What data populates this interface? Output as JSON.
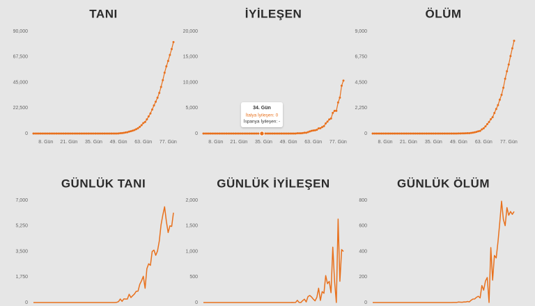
{
  "chart_data": [
    {
      "type": "line",
      "title": "TANI",
      "color": "#e8701c",
      "markers": true,
      "x": [
        1,
        2,
        3,
        4,
        5,
        6,
        7,
        8,
        9,
        10,
        11,
        12,
        13,
        14,
        15,
        16,
        17,
        18,
        19,
        20,
        21,
        22,
        23,
        24,
        25,
        26,
        27,
        28,
        29,
        30,
        31,
        32,
        33,
        34,
        35,
        36,
        37,
        38,
        39,
        40,
        41,
        42,
        43,
        44,
        45,
        46,
        47,
        48,
        49,
        50,
        51,
        52,
        53,
        54,
        55,
        56,
        57,
        58,
        59,
        60,
        61,
        62,
        63,
        64,
        65,
        66,
        67,
        68,
        69,
        70,
        71,
        72,
        73,
        74,
        75,
        76,
        77,
        78,
        79,
        80
      ],
      "values": [
        0,
        0,
        0,
        0,
        0,
        0,
        0,
        0,
        0,
        0,
        0,
        0,
        0,
        0,
        0,
        0,
        0,
        0,
        0,
        0,
        0,
        0,
        0,
        0,
        0,
        0,
        0,
        0,
        0,
        0,
        3,
        3,
        3,
        3,
        3,
        3,
        3,
        3,
        3,
        3,
        3,
        3,
        3,
        3,
        3,
        3,
        3,
        17,
        79,
        322,
        400,
        650,
        888,
        1128,
        1694,
        2036,
        2502,
        3089,
        3858,
        4636,
        5883,
        7375,
        9172,
        10149,
        12462,
        15113,
        17660,
        21157,
        24747,
        27980,
        31506,
        35713,
        41035,
        47021,
        53578,
        59138,
        63927,
        69176,
        74386,
        80539
      ],
      "xlim": [
        1,
        80
      ],
      "xticks": [
        {
          "value": 8,
          "label": "8. Gün"
        },
        {
          "value": 21,
          "label": "21. Gün"
        },
        {
          "value": 35,
          "label": "35. Gün"
        },
        {
          "value": 49,
          "label": "49. Gün"
        },
        {
          "value": 63,
          "label": "63. Gün"
        },
        {
          "value": 77,
          "label": "77. Gün"
        }
      ],
      "ylim": [
        0,
        90000
      ],
      "yticks": [
        0,
        {
          "value": 22500,
          "label": "22,500"
        },
        {
          "value": 45000,
          "label": "45,000"
        },
        {
          "value": 67500,
          "label": "67,500"
        },
        {
          "value": 90000,
          "label": "90,000"
        }
      ]
    },
    {
      "type": "line",
      "title": "İYİLEŞEN",
      "color": "#e8701c",
      "markers": true,
      "x": [
        1,
        2,
        3,
        4,
        5,
        6,
        7,
        8,
        9,
        10,
        11,
        12,
        13,
        14,
        15,
        16,
        17,
        18,
        19,
        20,
        21,
        22,
        23,
        24,
        25,
        26,
        27,
        28,
        29,
        30,
        31,
        32,
        33,
        34,
        35,
        36,
        37,
        38,
        39,
        40,
        41,
        42,
        43,
        44,
        45,
        46,
        47,
        48,
        49,
        50,
        51,
        52,
        53,
        54,
        55,
        56,
        57,
        58,
        59,
        60,
        61,
        62,
        63,
        64,
        65,
        66,
        67,
        68,
        69,
        70,
        71,
        72,
        73,
        74,
        75,
        76,
        77,
        78,
        79,
        80
      ],
      "values": [
        0,
        0,
        0,
        0,
        0,
        0,
        0,
        0,
        0,
        0,
        0,
        0,
        0,
        0,
        0,
        0,
        0,
        0,
        0,
        0,
        0,
        0,
        0,
        0,
        0,
        0,
        0,
        0,
        0,
        0,
        0,
        0,
        0,
        0,
        0,
        0,
        0,
        0,
        0,
        0,
        0,
        0,
        0,
        0,
        0,
        0,
        0,
        0,
        0,
        0,
        1,
        1,
        2,
        45,
        46,
        46,
        83,
        149,
        160,
        276,
        414,
        523,
        589,
        622,
        724,
        1004,
        1045,
        1258,
        1439,
        1966,
        2335,
        2749,
        2941,
        4025,
        4440,
        4440,
        6072,
        7024,
        9362,
        10361
      ],
      "xlim": [
        1,
        80
      ],
      "xticks": [
        {
          "value": 8,
          "label": "8. Gün"
        },
        {
          "value": 21,
          "label": "21. Gün"
        },
        {
          "value": 35,
          "label": "35. Gün"
        },
        {
          "value": 49,
          "label": "49. Gün"
        },
        {
          "value": 63,
          "label": "63. Gün"
        },
        {
          "value": 77,
          "label": "77. Gün"
        }
      ],
      "ylim": [
        0,
        20000
      ],
      "yticks": [
        0,
        {
          "value": 5000,
          "label": "5,000"
        },
        {
          "value": 10000,
          "label": "10,000"
        },
        {
          "value": 15000,
          "label": "15,000"
        },
        {
          "value": 20000,
          "label": "20,000"
        }
      ],
      "tooltip": {
        "title": "34. Gün",
        "lines": [
          "İtalya İyileşen: 0",
          "İspanya İyileşen: -"
        ]
      }
    },
    {
      "type": "line",
      "title": "ÖLÜM",
      "color": "#e8701c",
      "markers": true,
      "x": [
        1,
        2,
        3,
        4,
        5,
        6,
        7,
        8,
        9,
        10,
        11,
        12,
        13,
        14,
        15,
        16,
        17,
        18,
        19,
        20,
        21,
        22,
        23,
        24,
        25,
        26,
        27,
        28,
        29,
        30,
        31,
        32,
        33,
        34,
        35,
        36,
        37,
        38,
        39,
        40,
        41,
        42,
        43,
        44,
        45,
        46,
        47,
        48,
        49,
        50,
        51,
        52,
        53,
        54,
        55,
        56,
        57,
        58,
        59,
        60,
        61,
        62,
        63,
        64,
        65,
        66,
        67,
        68,
        69,
        70,
        71,
        72,
        73,
        74,
        75,
        76,
        77,
        78,
        79,
        80
      ],
      "values": [
        0,
        0,
        0,
        0,
        0,
        0,
        0,
        0,
        0,
        0,
        0,
        0,
        0,
        0,
        0,
        0,
        0,
        0,
        0,
        0,
        0,
        0,
        0,
        0,
        0,
        0,
        0,
        0,
        0,
        0,
        0,
        0,
        0,
        0,
        0,
        0,
        0,
        0,
        0,
        0,
        0,
        0,
        0,
        0,
        0,
        1,
        2,
        3,
        7,
        10,
        12,
        17,
        21,
        29,
        34,
        52,
        79,
        107,
        148,
        197,
        233,
        366,
        463,
        631,
        827,
        1016,
        1266,
        1441,
        1809,
        2158,
        2503,
        2978,
        3405,
        4032,
        4825,
        5476,
        6077,
        6820,
        7503,
        8165
      ],
      "xlim": [
        1,
        80
      ],
      "xticks": [
        {
          "value": 8,
          "label": "8. Gün"
        },
        {
          "value": 21,
          "label": "21. Gün"
        },
        {
          "value": 35,
          "label": "35. Gün"
        },
        {
          "value": 49,
          "label": "49. Gün"
        },
        {
          "value": 63,
          "label": "63. Gün"
        },
        {
          "value": 77,
          "label": "77. Gün"
        }
      ],
      "ylim": [
        0,
        9000
      ],
      "yticks": [
        0,
        {
          "value": 2250,
          "label": "2,250"
        },
        {
          "value": 4500,
          "label": "4,500"
        },
        {
          "value": 6750,
          "label": "6,750"
        },
        {
          "value": 9000,
          "label": "9,000"
        }
      ]
    },
    {
      "type": "line",
      "title": "GÜNLÜK TANI",
      "color": "#e8701c",
      "markers": false,
      "x": [
        1,
        2,
        3,
        4,
        5,
        6,
        7,
        8,
        9,
        10,
        11,
        12,
        13,
        14,
        15,
        16,
        17,
        18,
        19,
        20,
        21,
        22,
        23,
        24,
        25,
        26,
        27,
        28,
        29,
        30,
        31,
        32,
        33,
        34,
        35,
        36,
        37,
        38,
        39,
        40,
        41,
        42,
        43,
        44,
        45,
        46,
        47,
        48,
        49,
        50,
        51,
        52,
        53,
        54,
        55,
        56,
        57,
        58,
        59,
        60,
        61,
        62,
        63,
        64,
        65,
        66,
        67,
        68,
        69,
        70,
        71,
        72,
        73,
        74,
        75,
        76,
        77,
        78,
        79,
        80
      ],
      "values": [
        0,
        0,
        0,
        0,
        0,
        0,
        0,
        0,
        0,
        0,
        0,
        0,
        0,
        0,
        0,
        0,
        0,
        0,
        0,
        0,
        0,
        0,
        0,
        0,
        0,
        0,
        0,
        0,
        0,
        0,
        3,
        0,
        0,
        0,
        0,
        0,
        0,
        0,
        0,
        0,
        0,
        0,
        0,
        0,
        0,
        0,
        0,
        14,
        62,
        243,
        78,
        250,
        238,
        240,
        566,
        342,
        466,
        587,
        769,
        778,
        1247,
        1492,
        1797,
        977,
        2313,
        2651,
        2547,
        3497,
        3590,
        3233,
        3526,
        4207,
        5322,
        5986,
        6557,
        5560,
        4789,
        5249,
        5210,
        6153
      ],
      "xlim": [
        1,
        80
      ],
      "ylim": [
        0,
        7000
      ],
      "yticks": [
        0,
        {
          "value": 1750,
          "label": "1,750"
        },
        {
          "value": 3500,
          "label": "3,500"
        },
        {
          "value": 5250,
          "label": "5,250"
        },
        {
          "value": 7000,
          "label": "7,000"
        }
      ]
    },
    {
      "type": "line",
      "title": "GÜNLÜK İYİLEŞEN",
      "color": "#e8701c",
      "markers": false,
      "x": [
        1,
        2,
        3,
        4,
        5,
        6,
        7,
        8,
        9,
        10,
        11,
        12,
        13,
        14,
        15,
        16,
        17,
        18,
        19,
        20,
        21,
        22,
        23,
        24,
        25,
        26,
        27,
        28,
        29,
        30,
        31,
        32,
        33,
        34,
        35,
        36,
        37,
        38,
        39,
        40,
        41,
        42,
        43,
        44,
        45,
        46,
        47,
        48,
        49,
        50,
        51,
        52,
        53,
        54,
        55,
        56,
        57,
        58,
        59,
        60,
        61,
        62,
        63,
        64,
        65,
        66,
        67,
        68,
        69,
        70,
        71,
        72,
        73,
        74,
        75,
        76,
        77,
        78,
        79,
        80
      ],
      "values": [
        0,
        0,
        0,
        0,
        0,
        0,
        0,
        0,
        0,
        0,
        0,
        0,
        0,
        0,
        0,
        0,
        0,
        0,
        0,
        0,
        0,
        0,
        0,
        0,
        0,
        0,
        0,
        0,
        0,
        0,
        0,
        0,
        0,
        0,
        0,
        0,
        0,
        0,
        0,
        0,
        0,
        0,
        0,
        0,
        0,
        0,
        0,
        0,
        0,
        0,
        1,
        0,
        1,
        43,
        1,
        0,
        37,
        66,
        11,
        116,
        138,
        109,
        66,
        33,
        102,
        280,
        41,
        213,
        181,
        527,
        369,
        414,
        192,
        1084,
        415,
        0,
        1632,
        415,
        1036,
        999
      ],
      "xlim": [
        1,
        80
      ],
      "ylim": [
        0,
        2000
      ],
      "yticks": [
        0,
        500,
        {
          "value": 1000,
          "label": "1,000"
        },
        {
          "value": 1500,
          "label": "1,500"
        },
        {
          "value": 2000,
          "label": "2,000"
        }
      ]
    },
    {
      "type": "line",
      "title": "GÜNLÜK ÖLÜM",
      "color": "#e8701c",
      "markers": false,
      "x": [
        1,
        2,
        3,
        4,
        5,
        6,
        7,
        8,
        9,
        10,
        11,
        12,
        13,
        14,
        15,
        16,
        17,
        18,
        19,
        20,
        21,
        22,
        23,
        24,
        25,
        26,
        27,
        28,
        29,
        30,
        31,
        32,
        33,
        34,
        35,
        36,
        37,
        38,
        39,
        40,
        41,
        42,
        43,
        44,
        45,
        46,
        47,
        48,
        49,
        50,
        51,
        52,
        53,
        54,
        55,
        56,
        57,
        58,
        59,
        60,
        61,
        62,
        63,
        64,
        65,
        66,
        67,
        68,
        69,
        70,
        71,
        72,
        73,
        74,
        75,
        76,
        77,
        78,
        79,
        80
      ],
      "values": [
        0,
        0,
        0,
        0,
        0,
        0,
        0,
        0,
        0,
        0,
        0,
        0,
        0,
        0,
        0,
        0,
        0,
        0,
        0,
        0,
        0,
        0,
        0,
        0,
        0,
        0,
        0,
        0,
        0,
        0,
        0,
        0,
        0,
        0,
        0,
        0,
        0,
        0,
        0,
        0,
        0,
        0,
        0,
        0,
        0,
        1,
        1,
        1,
        4,
        3,
        2,
        5,
        4,
        8,
        5,
        18,
        27,
        28,
        41,
        49,
        36,
        133,
        97,
        168,
        196,
        0,
        430,
        175,
        368,
        349,
        475,
        627,
        793,
        651,
        601,
        743,
        683,
        712,
        690,
        712
      ],
      "xlim": [
        1,
        80
      ],
      "ylim": [
        0,
        800
      ],
      "yticks": [
        0,
        200,
        400,
        600,
        800
      ]
    }
  ]
}
